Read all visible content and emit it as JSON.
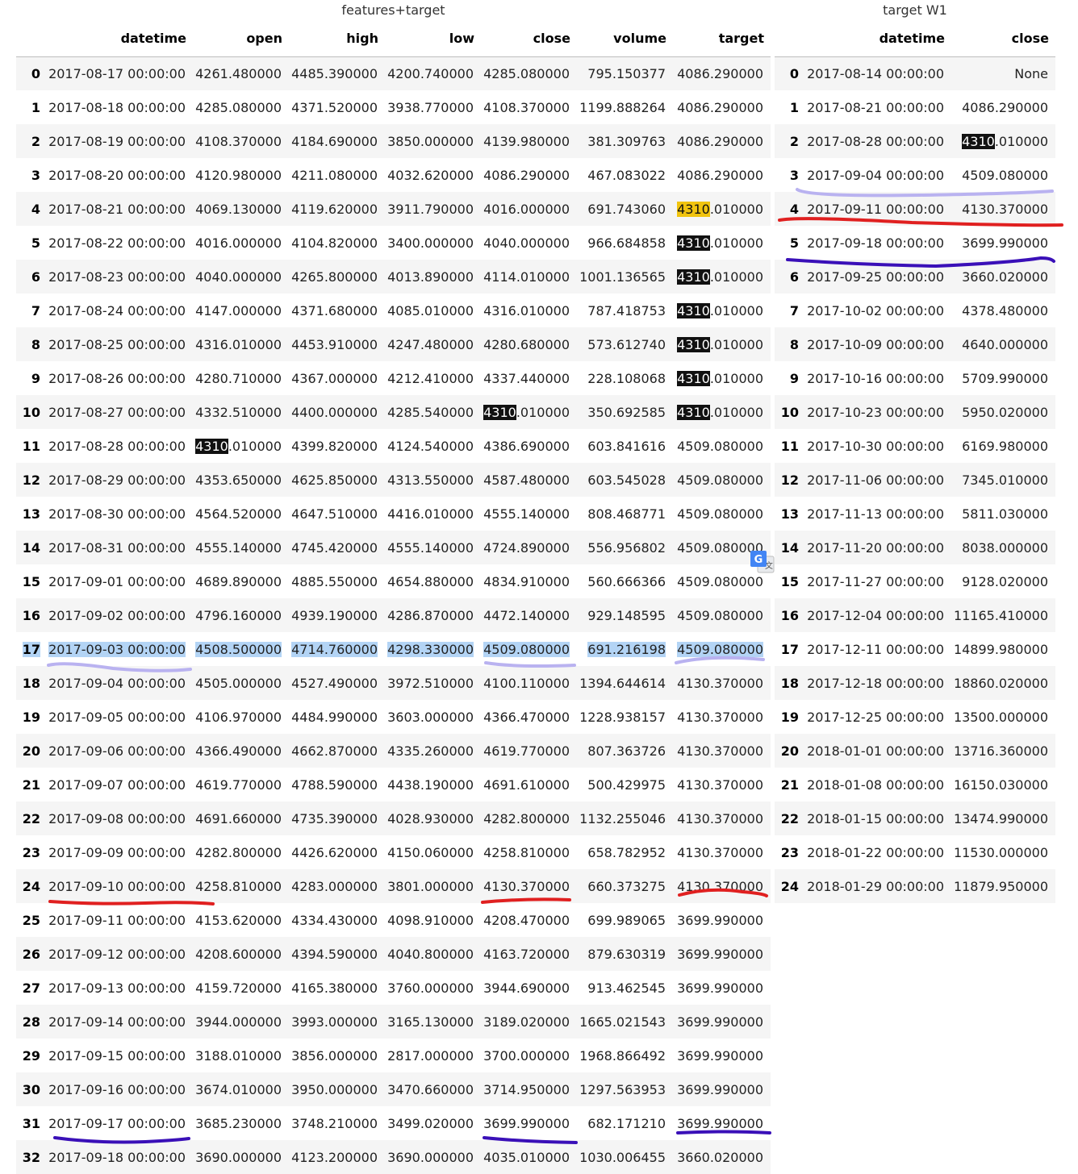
{
  "left_table": {
    "caption": "features+target",
    "headers": [
      "",
      "datetime",
      "open",
      "high",
      "low",
      "close",
      "volume",
      "target"
    ],
    "rows": [
      [
        "0",
        "2017-08-17 00:00:00",
        "4261.480000",
        "4485.390000",
        "4200.740000",
        "4285.080000",
        "795.150377",
        "4086.290000"
      ],
      [
        "1",
        "2017-08-18 00:00:00",
        "4285.080000",
        "4371.520000",
        "3938.770000",
        "4108.370000",
        "1199.888264",
        "4086.290000"
      ],
      [
        "2",
        "2017-08-19 00:00:00",
        "4108.370000",
        "4184.690000",
        "3850.000000",
        "4139.980000",
        "381.309763",
        "4086.290000"
      ],
      [
        "3",
        "2017-08-20 00:00:00",
        "4120.980000",
        "4211.080000",
        "4032.620000",
        "4086.290000",
        "467.083022",
        "4086.290000"
      ],
      [
        "4",
        "2017-08-21 00:00:00",
        "4069.130000",
        "4119.620000",
        "3911.790000",
        "4016.000000",
        "691.743060",
        "4310.010000"
      ],
      [
        "5",
        "2017-08-22 00:00:00",
        "4016.000000",
        "4104.820000",
        "3400.000000",
        "4040.000000",
        "966.684858",
        "4310.010000"
      ],
      [
        "6",
        "2017-08-23 00:00:00",
        "4040.000000",
        "4265.800000",
        "4013.890000",
        "4114.010000",
        "1001.136565",
        "4310.010000"
      ],
      [
        "7",
        "2017-08-24 00:00:00",
        "4147.000000",
        "4371.680000",
        "4085.010000",
        "4316.010000",
        "787.418753",
        "4310.010000"
      ],
      [
        "8",
        "2017-08-25 00:00:00",
        "4316.010000",
        "4453.910000",
        "4247.480000",
        "4280.680000",
        "573.612740",
        "4310.010000"
      ],
      [
        "9",
        "2017-08-26 00:00:00",
        "4280.710000",
        "4367.000000",
        "4212.410000",
        "4337.440000",
        "228.108068",
        "4310.010000"
      ],
      [
        "10",
        "2017-08-27 00:00:00",
        "4332.510000",
        "4400.000000",
        "4285.540000",
        "4310.010000",
        "350.692585",
        "4310.010000"
      ],
      [
        "11",
        "2017-08-28 00:00:00",
        "4310.010000",
        "4399.820000",
        "4124.540000",
        "4386.690000",
        "603.841616",
        "4509.080000"
      ],
      [
        "12",
        "2017-08-29 00:00:00",
        "4353.650000",
        "4625.850000",
        "4313.550000",
        "4587.480000",
        "603.545028",
        "4509.080000"
      ],
      [
        "13",
        "2017-08-30 00:00:00",
        "4564.520000",
        "4647.510000",
        "4416.010000",
        "4555.140000",
        "808.468771",
        "4509.080000"
      ],
      [
        "14",
        "2017-08-31 00:00:00",
        "4555.140000",
        "4745.420000",
        "4555.140000",
        "4724.890000",
        "556.956802",
        "4509.080000"
      ],
      [
        "15",
        "2017-09-01 00:00:00",
        "4689.890000",
        "4885.550000",
        "4654.880000",
        "4834.910000",
        "560.666366",
        "4509.080000"
      ],
      [
        "16",
        "2017-09-02 00:00:00",
        "4796.160000",
        "4939.190000",
        "4286.870000",
        "4472.140000",
        "929.148595",
        "4509.080000"
      ],
      [
        "17",
        "2017-09-03 00:00:00",
        "4508.500000",
        "4714.760000",
        "4298.330000",
        "4509.080000",
        "691.216198",
        "4509.080000"
      ],
      [
        "18",
        "2017-09-04 00:00:00",
        "4505.000000",
        "4527.490000",
        "3972.510000",
        "4100.110000",
        "1394.644614",
        "4130.370000"
      ],
      [
        "19",
        "2017-09-05 00:00:00",
        "4106.970000",
        "4484.990000",
        "3603.000000",
        "4366.470000",
        "1228.938157",
        "4130.370000"
      ],
      [
        "20",
        "2017-09-06 00:00:00",
        "4366.490000",
        "4662.870000",
        "4335.260000",
        "4619.770000",
        "807.363726",
        "4130.370000"
      ],
      [
        "21",
        "2017-09-07 00:00:00",
        "4619.770000",
        "4788.590000",
        "4438.190000",
        "4691.610000",
        "500.429975",
        "4130.370000"
      ],
      [
        "22",
        "2017-09-08 00:00:00",
        "4691.660000",
        "4735.390000",
        "4028.930000",
        "4282.800000",
        "1132.255046",
        "4130.370000"
      ],
      [
        "23",
        "2017-09-09 00:00:00",
        "4282.800000",
        "4426.620000",
        "4150.060000",
        "4258.810000",
        "658.782952",
        "4130.370000"
      ],
      [
        "24",
        "2017-09-10 00:00:00",
        "4258.810000",
        "4283.000000",
        "3801.000000",
        "4130.370000",
        "660.373275",
        "4130.370000"
      ],
      [
        "25",
        "2017-09-11 00:00:00",
        "4153.620000",
        "4334.430000",
        "4098.910000",
        "4208.470000",
        "699.989065",
        "3699.990000"
      ],
      [
        "26",
        "2017-09-12 00:00:00",
        "4208.600000",
        "4394.590000",
        "4040.800000",
        "4163.720000",
        "879.630319",
        "3699.990000"
      ],
      [
        "27",
        "2017-09-13 00:00:00",
        "4159.720000",
        "4165.380000",
        "3760.000000",
        "3944.690000",
        "913.462545",
        "3699.990000"
      ],
      [
        "28",
        "2017-09-14 00:00:00",
        "3944.000000",
        "3993.000000",
        "3165.130000",
        "3189.020000",
        "1665.021543",
        "3699.990000"
      ],
      [
        "29",
        "2017-09-15 00:00:00",
        "3188.010000",
        "3856.000000",
        "2817.000000",
        "3700.000000",
        "1968.866492",
        "3699.990000"
      ],
      [
        "30",
        "2017-09-16 00:00:00",
        "3674.010000",
        "3950.000000",
        "3470.660000",
        "3714.950000",
        "1297.563953",
        "3699.990000"
      ],
      [
        "31",
        "2017-09-17 00:00:00",
        "3685.230000",
        "3748.210000",
        "3499.020000",
        "3699.990000",
        "682.171210",
        "3699.990000"
      ],
      [
        "32",
        "2017-09-18 00:00:00",
        "3690.000000",
        "4123.200000",
        "3690.000000",
        "4035.010000",
        "1030.006455",
        "3660.020000"
      ]
    ]
  },
  "right_table": {
    "caption": "target W1",
    "headers": [
      "",
      "datetime",
      "close"
    ],
    "rows": [
      [
        "0",
        "2017-08-14 00:00:00",
        "None"
      ],
      [
        "1",
        "2017-08-21 00:00:00",
        "4086.290000"
      ],
      [
        "2",
        "2017-08-28 00:00:00",
        "4310.010000"
      ],
      [
        "3",
        "2017-09-04 00:00:00",
        "4509.080000"
      ],
      [
        "4",
        "2017-09-11 00:00:00",
        "4130.370000"
      ],
      [
        "5",
        "2017-09-18 00:00:00",
        "3699.990000"
      ],
      [
        "6",
        "2017-09-25 00:00:00",
        "3660.020000"
      ],
      [
        "7",
        "2017-10-02 00:00:00",
        "4378.480000"
      ],
      [
        "8",
        "2017-10-09 00:00:00",
        "4640.000000"
      ],
      [
        "9",
        "2017-10-16 00:00:00",
        "5709.990000"
      ],
      [
        "10",
        "2017-10-23 00:00:00",
        "5950.020000"
      ],
      [
        "11",
        "2017-10-30 00:00:00",
        "6169.980000"
      ],
      [
        "12",
        "2017-11-06 00:00:00",
        "7345.010000"
      ],
      [
        "13",
        "2017-11-13 00:00:00",
        "5811.030000"
      ],
      [
        "14",
        "2017-11-20 00:00:00",
        "8038.000000"
      ],
      [
        "15",
        "2017-11-27 00:00:00",
        "9128.020000"
      ],
      [
        "16",
        "2017-12-04 00:00:00",
        "11165.410000"
      ],
      [
        "17",
        "2017-12-11 00:00:00",
        "14899.980000"
      ],
      [
        "18",
        "2017-12-18 00:00:00",
        "18860.020000"
      ],
      [
        "19",
        "2017-12-25 00:00:00",
        "13500.000000"
      ],
      [
        "20",
        "2018-01-01 00:00:00",
        "13716.360000"
      ],
      [
        "21",
        "2018-01-08 00:00:00",
        "16150.030000"
      ],
      [
        "22",
        "2018-01-15 00:00:00",
        "13474.990000"
      ],
      [
        "23",
        "2018-01-22 00:00:00",
        "11530.000000"
      ],
      [
        "24",
        "2018-01-29 00:00:00",
        "11879.950000"
      ]
    ]
  },
  "highlights": {
    "search_term": "4310",
    "left_selected_row": 17,
    "left_yellow_cell": {
      "row": 4,
      "col": 7
    },
    "left_dark_cells": [
      [
        5,
        7
      ],
      [
        6,
        7
      ],
      [
        7,
        7
      ],
      [
        8,
        7
      ],
      [
        9,
        7
      ],
      [
        10,
        7
      ],
      [
        10,
        5
      ],
      [
        11,
        2
      ]
    ],
    "right_dark_cells": [
      [
        2,
        2
      ]
    ],
    "colors": {
      "selection": "#b3d4f5",
      "dark": "#111111",
      "yellow": "#f1c40f",
      "lavender": "#b9b2f0",
      "red": "#e02020",
      "indigo": "#3a10b8"
    }
  },
  "icons": {
    "translate_badge": "google-translate-icon"
  }
}
